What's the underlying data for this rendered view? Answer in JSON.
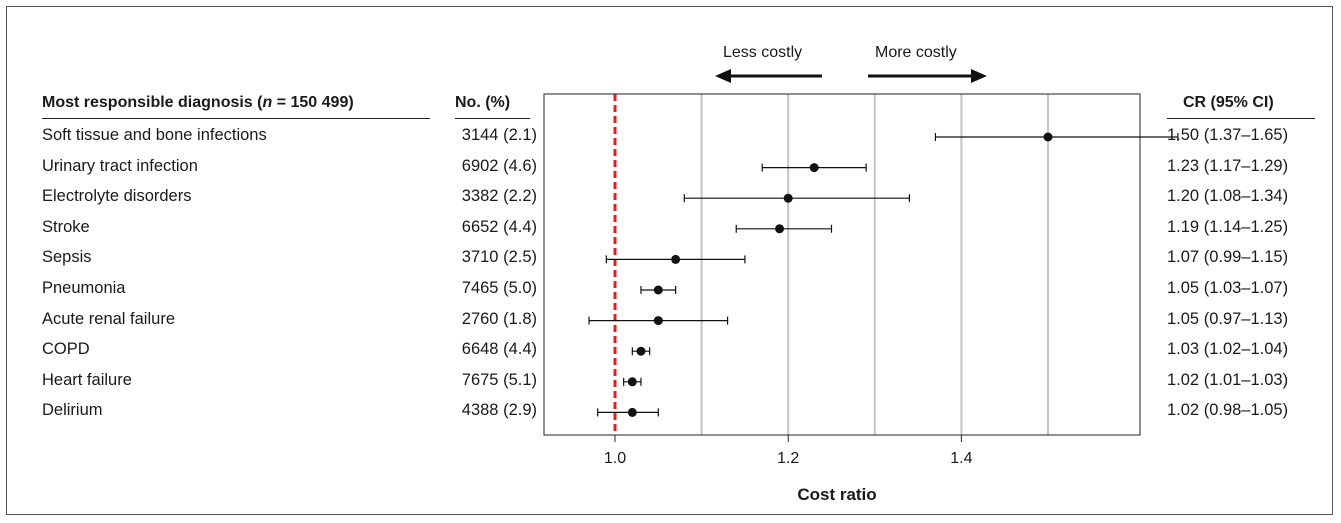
{
  "headers": {
    "diagnosis_prefix": "Most responsible diagnosis (",
    "diagnosis_n": "n",
    "diagnosis_suffix": " = 150 499)",
    "count": "No. (%)",
    "cr": "CR (95% CI)"
  },
  "direction": {
    "left": "Less costly",
    "right": "More costly"
  },
  "rows": [
    {
      "diagnosis": "Soft tissue and bone infections",
      "count": "3144 (2.1)",
      "cr_text": "1.50 (1.37–1.65)"
    },
    {
      "diagnosis": "Urinary tract infection",
      "count": "6902 (4.6)",
      "cr_text": "1.23 (1.17–1.29)"
    },
    {
      "diagnosis": "Electrolyte disorders",
      "count": "3382 (2.2)",
      "cr_text": "1.20 (1.08–1.34)"
    },
    {
      "diagnosis": "Stroke",
      "count": "6652 (4.4)",
      "cr_text": "1.19 (1.14–1.25)"
    },
    {
      "diagnosis": "Sepsis",
      "count": "3710 (2.5)",
      "cr_text": "1.07 (0.99–1.15)"
    },
    {
      "diagnosis": "Pneumonia",
      "count": "7465 (5.0)",
      "cr_text": "1.05 (1.03–1.07)"
    },
    {
      "diagnosis": "Acute renal failure",
      "count": "2760 (1.8)",
      "cr_text": "1.05 (0.97–1.13)"
    },
    {
      "diagnosis": "COPD",
      "count": "6648 (4.4)",
      "cr_text": "1.03 (1.02–1.04)"
    },
    {
      "diagnosis": "Heart failure",
      "count": "7675 (5.1)",
      "cr_text": "1.02 (1.01–1.03)"
    },
    {
      "diagnosis": "Delirium",
      "count": "4388 (2.9)",
      "cr_text": "1.02 (0.98–1.05)"
    }
  ],
  "chart_data": {
    "type": "scatter",
    "xlabel": "Cost ratio",
    "ylabel": "",
    "reference_line": 1.0,
    "reference_color": "#e02020",
    "gridlines": [
      1.1,
      1.2,
      1.3,
      1.4,
      1.5
    ],
    "xticks": [
      1.0,
      1.2,
      1.4
    ],
    "xtick_labels": [
      "1.0",
      "1.2",
      "1.4"
    ],
    "categories": [
      "Soft tissue and bone infections",
      "Urinary tract infection",
      "Electrolyte disorders",
      "Stroke",
      "Sepsis",
      "Pneumonia",
      "Acute renal failure",
      "COPD",
      "Heart failure",
      "Delirium"
    ],
    "series": [
      {
        "cr": [
          1.5,
          1.23,
          1.2,
          1.19,
          1.07,
          1.05,
          1.05,
          1.03,
          1.02,
          1.02
        ],
        "ci_low": [
          1.37,
          1.17,
          1.08,
          1.14,
          0.99,
          1.03,
          0.97,
          1.02,
          1.01,
          0.98
        ],
        "ci_high": [
          1.65,
          1.29,
          1.34,
          1.25,
          1.15,
          1.07,
          1.13,
          1.04,
          1.03,
          1.05
        ]
      }
    ],
    "xlim": [
      0.88,
      1.62
    ],
    "grid": true
  }
}
